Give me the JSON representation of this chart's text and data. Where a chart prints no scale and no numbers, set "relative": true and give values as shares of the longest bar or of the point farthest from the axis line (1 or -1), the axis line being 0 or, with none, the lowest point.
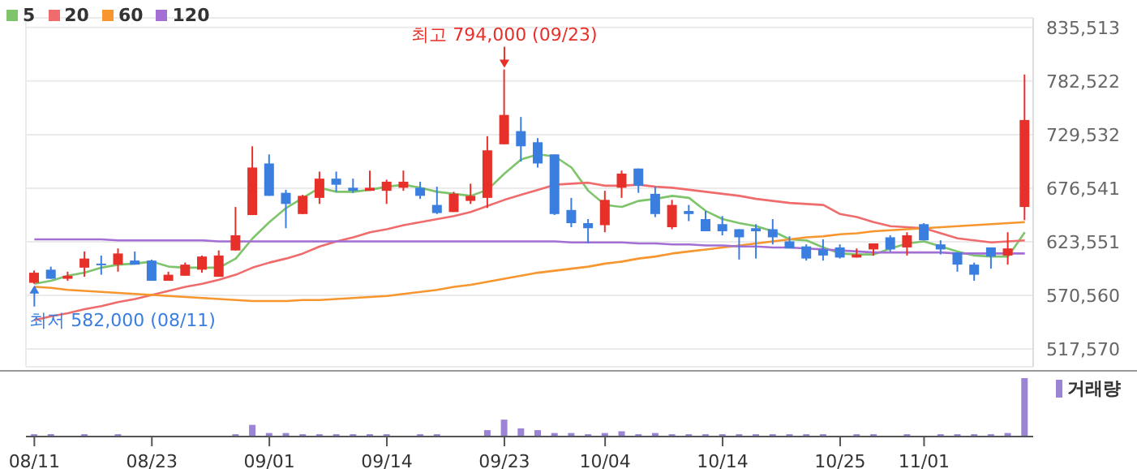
{
  "chart_data": [
    {
      "type": "candlestick",
      "categories": [
        "08/11",
        null,
        null,
        null,
        null,
        null,
        null,
        "08/23",
        null,
        null,
        null,
        null,
        null,
        null,
        "09/01",
        null,
        null,
        null,
        null,
        null,
        null,
        "09/14",
        null,
        null,
        null,
        null,
        null,
        null,
        "09/23",
        null,
        null,
        null,
        null,
        null,
        "10/04",
        null,
        null,
        null,
        null,
        null,
        null,
        "10/14",
        null,
        null,
        null,
        null,
        null,
        null,
        "10/25",
        null,
        null,
        null,
        null,
        "11/01",
        null,
        null,
        null,
        null,
        null,
        null
      ],
      "ohlc": [
        [
          583000,
          595000,
          582000,
          593000
        ],
        [
          596000,
          599000,
          587000,
          587000
        ],
        [
          587000,
          594000,
          585000,
          590000
        ],
        [
          598000,
          614000,
          589000,
          607000
        ],
        [
          602000,
          610000,
          591000,
          601000
        ],
        [
          601000,
          617000,
          594000,
          612000
        ],
        [
          605000,
          614000,
          601000,
          601000
        ],
        [
          605000,
          606000,
          585000,
          585000
        ],
        [
          585000,
          594000,
          585000,
          591000
        ],
        [
          590000,
          603000,
          590000,
          601000
        ],
        [
          596000,
          610000,
          593000,
          609000
        ],
        [
          589000,
          615000,
          589000,
          610000
        ],
        [
          615000,
          658000,
          615000,
          630000
        ],
        [
          650000,
          718000,
          650000,
          697000
        ],
        [
          701000,
          710000,
          669000,
          669000
        ],
        [
          672000,
          675000,
          637000,
          661000
        ],
        [
          651000,
          670000,
          651000,
          669000
        ],
        [
          667000,
          693000,
          661000,
          686000
        ],
        [
          686000,
          693000,
          673000,
          680000
        ],
        [
          677000,
          686000,
          672000,
          674000
        ],
        [
          674000,
          694000,
          674000,
          677000
        ],
        [
          674000,
          685000,
          661000,
          683000
        ],
        [
          677000,
          694000,
          674000,
          683000
        ],
        [
          677000,
          683000,
          666000,
          669000
        ],
        [
          660000,
          678000,
          651000,
          652000
        ],
        [
          653000,
          673000,
          653000,
          671000
        ],
        [
          664000,
          681000,
          661000,
          669000
        ],
        [
          667000,
          728000,
          657000,
          714000
        ],
        [
          720000,
          794000,
          720000,
          749000
        ],
        [
          733000,
          747000,
          703000,
          718000
        ],
        [
          722000,
          726000,
          697000,
          701000
        ],
        [
          710000,
          710000,
          650000,
          651000
        ],
        [
          655000,
          667000,
          638000,
          642000
        ],
        [
          642000,
          646000,
          622000,
          637000
        ],
        [
          640000,
          674000,
          633000,
          665000
        ],
        [
          677000,
          694000,
          667000,
          691000
        ],
        [
          696000,
          696000,
          672000,
          679000
        ],
        [
          671000,
          678000,
          648000,
          651000
        ],
        [
          638000,
          665000,
          636000,
          660000
        ],
        [
          654000,
          660000,
          644000,
          651000
        ],
        [
          646000,
          654000,
          634000,
          634000
        ],
        [
          641000,
          649000,
          630000,
          634000
        ],
        [
          636000,
          636000,
          606000,
          628000
        ],
        [
          637000,
          641000,
          607000,
          634000
        ],
        [
          636000,
          646000,
          621000,
          628000
        ],
        [
          624000,
          629000,
          617000,
          617000
        ],
        [
          619000,
          621000,
          605000,
          607000
        ],
        [
          616000,
          626000,
          605000,
          610000
        ],
        [
          618000,
          621000,
          607000,
          608000
        ],
        [
          608000,
          617000,
          608000,
          611000
        ],
        [
          616000,
          622000,
          610000,
          622000
        ],
        [
          628000,
          630000,
          614000,
          616000
        ],
        [
          618000,
          633000,
          610000,
          630000
        ],
        [
          641000,
          642000,
          625000,
          625000
        ],
        [
          621000,
          625000,
          611000,
          616000
        ],
        [
          613000,
          613000,
          594000,
          601000
        ],
        [
          601000,
          603000,
          585000,
          591000
        ],
        [
          618000,
          618000,
          597000,
          609000
        ],
        [
          610000,
          633000,
          601000,
          617000
        ],
        [
          658000,
          789000,
          645000,
          744000
        ]
      ],
      "series": [
        {
          "name": "5",
          "type": "line",
          "color": "#7ec46a",
          "values": [
            582000,
            585000,
            590000,
            593000,
            598000,
            601000,
            602000,
            604000,
            599000,
            598000,
            598000,
            598000,
            607000,
            627000,
            643000,
            657000,
            667000,
            677000,
            673000,
            673000,
            675000,
            678000,
            680000,
            677000,
            673000,
            671000,
            669000,
            675000,
            691000,
            705000,
            710000,
            708000,
            697000,
            674000,
            660000,
            658000,
            664000,
            666000,
            669000,
            667000,
            654000,
            646000,
            642000,
            639000,
            634000,
            626000,
            625000,
            618000,
            612000,
            611000,
            611000,
            617000,
            622000,
            624000,
            619000,
            614000,
            610000,
            609000,
            609000,
            633000
          ]
        },
        {
          "name": "20",
          "type": "line",
          "color": "#f06b6b",
          "values": [
            546000,
            550000,
            553000,
            557000,
            560000,
            564000,
            567000,
            571000,
            575000,
            579000,
            582000,
            586000,
            591000,
            598000,
            603000,
            607000,
            612000,
            619000,
            624000,
            628000,
            633000,
            636000,
            640000,
            643000,
            646000,
            649000,
            653000,
            659000,
            665000,
            670000,
            675000,
            680000,
            681000,
            682000,
            679000,
            679000,
            680000,
            678000,
            677000,
            675000,
            673000,
            671000,
            669000,
            666000,
            664000,
            662000,
            661000,
            660000,
            651000,
            648000,
            643000,
            639000,
            638000,
            637000,
            632000,
            627000,
            625000,
            623000,
            624000,
            625000
          ]
        },
        {
          "name": "60",
          "type": "line",
          "color": "#f7962e",
          "values": [
            579000,
            578000,
            576000,
            575000,
            574000,
            573000,
            572000,
            571000,
            570000,
            569000,
            568000,
            567000,
            566000,
            565000,
            565000,
            565000,
            566000,
            566000,
            567000,
            568000,
            569000,
            570000,
            572000,
            574000,
            576000,
            579000,
            581000,
            584000,
            587000,
            590000,
            593000,
            595000,
            597000,
            599000,
            602000,
            604000,
            607000,
            609000,
            612000,
            614000,
            616000,
            618000,
            620000,
            622000,
            624000,
            626000,
            628000,
            629000,
            631000,
            632000,
            634000,
            635000,
            636000,
            637000,
            638000,
            639000,
            640000,
            641000,
            642000,
            643000
          ]
        },
        {
          "name": "120",
          "type": "line",
          "color": "#a36fd4",
          "values": [
            626000,
            626000,
            626000,
            626000,
            626000,
            625000,
            625000,
            625000,
            625000,
            625000,
            625000,
            624000,
            624000,
            624000,
            624000,
            624000,
            624000,
            624000,
            624000,
            624000,
            624000,
            624000,
            624000,
            624000,
            624000,
            624000,
            624000,
            624000,
            624000,
            624000,
            624000,
            624000,
            623000,
            623000,
            623000,
            623000,
            622000,
            622000,
            621000,
            621000,
            620000,
            620000,
            619000,
            619000,
            618000,
            618000,
            617000,
            616000,
            615000,
            614000,
            613000,
            613000,
            613000,
            613000,
            613000,
            612000,
            612000,
            612000,
            612000,
            612000
          ]
        }
      ],
      "ylim": [
        500000,
        845000
      ],
      "yticks": [
        {
          "value": 517570,
          "label": "517,570"
        },
        {
          "value": 570560,
          "label": "570,560"
        },
        {
          "value": 623551,
          "label": "623,551"
        },
        {
          "value": 676541,
          "label": "676,541"
        },
        {
          "value": 729532,
          "label": "729,532"
        },
        {
          "value": 782522,
          "label": "782,522"
        },
        {
          "value": 835513,
          "label": "835,513"
        }
      ],
      "grid": true,
      "legend": "top left",
      "tick_labels": "y",
      "annotations": [
        {
          "text": "최고 794,000 (09/23)",
          "x": "09/23",
          "y": 794000
        },
        {
          "text": "최저 582,000 (08/11)",
          "x": "08/11",
          "y": 582000
        }
      ]
    },
    {
      "type": "bar",
      "relative": true,
      "categories": [
        "08/11",
        null,
        null,
        null,
        null,
        null,
        null,
        "08/23",
        null,
        null,
        null,
        null,
        null,
        null,
        "09/01",
        null,
        null,
        null,
        null,
        null,
        null,
        "09/14",
        null,
        null,
        null,
        null,
        null,
        null,
        "09/23",
        null,
        null,
        null,
        null,
        null,
        "10/04",
        null,
        null,
        null,
        null,
        null,
        null,
        "10/14",
        null,
        null,
        null,
        null,
        null,
        null,
        "10/25",
        null,
        null,
        null,
        null,
        "11/01",
        null,
        null,
        null,
        null,
        null,
        null
      ],
      "series": [
        {
          "name": "거래량",
          "color": "#9b84d6",
          "values": [
            0.04,
            0.04,
            null,
            0.04,
            null,
            0.04,
            null,
            null,
            null,
            null,
            null,
            null,
            0.04,
            0.2,
            0.06,
            0.06,
            0.04,
            0.04,
            0.04,
            0.04,
            0.04,
            0.04,
            null,
            0.04,
            0.04,
            null,
            null,
            0.11,
            0.29,
            0.14,
            0.11,
            0.06,
            0.06,
            0.04,
            0.06,
            0.09,
            0.04,
            0.06,
            0.04,
            0.04,
            0.04,
            0.04,
            0.04,
            0.04,
            0.04,
            0.04,
            0.04,
            0.04,
            null,
            0.04,
            0.04,
            null,
            0.04,
            null,
            0.04,
            0.04,
            0.04,
            0.04,
            0.06,
            1
          ]
        }
      ],
      "legend": "top right",
      "tick_labels": "x"
    }
  ]
}
